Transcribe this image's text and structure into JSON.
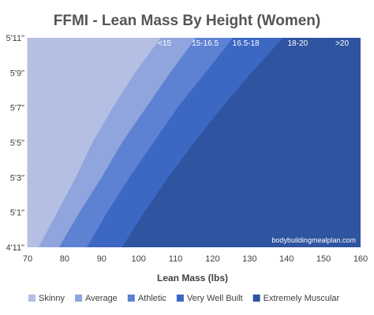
{
  "chart_data": {
    "type": "area",
    "title": "FFMI - Lean Mass By Height (Women)",
    "xlabel": "Lean Mass (lbs)",
    "ylabel": "",
    "xlim": [
      70,
      160
    ],
    "ylim": [
      59,
      71
    ],
    "x_ticks": [
      70,
      80,
      90,
      100,
      110,
      120,
      130,
      140,
      150,
      160
    ],
    "y_ticks": [
      {
        "value": 59,
        "label": "4'11\""
      },
      {
        "value": 61,
        "label": "5'1\""
      },
      {
        "value": 63,
        "label": "5'3\""
      },
      {
        "value": 65,
        "label": "5'5\""
      },
      {
        "value": 67,
        "label": "5'7\""
      },
      {
        "value": 69,
        "label": "5'9\""
      },
      {
        "value": 71,
        "label": "5'11\""
      }
    ],
    "series": [
      {
        "name": "Skinny",
        "color": "#b4bfe3"
      },
      {
        "name": "Average",
        "color": "#90a5dd",
        "lower_boundary": [
          [
            73,
            59
          ],
          [
            78,
            61
          ],
          [
            83,
            63
          ],
          [
            87.5,
            65
          ],
          [
            93,
            67
          ],
          [
            99,
            69
          ],
          [
            106,
            71
          ]
        ]
      },
      {
        "name": "Athletic",
        "color": "#5e82d2",
        "lower_boundary": [
          [
            78.5,
            59
          ],
          [
            84,
            61
          ],
          [
            90,
            63
          ],
          [
            95.5,
            65
          ],
          [
            102,
            67
          ],
          [
            108.5,
            69
          ],
          [
            115.5,
            71
          ]
        ]
      },
      {
        "name": "Very Well Built",
        "color": "#3c68c4",
        "lower_boundary": [
          [
            86,
            59
          ],
          [
            91.5,
            61
          ],
          [
            97.5,
            63
          ],
          [
            104,
            65
          ],
          [
            110.5,
            67
          ],
          [
            118,
            69
          ],
          [
            125.5,
            71
          ]
        ]
      },
      {
        "name": "Extremely Muscular",
        "color": "#2f54a0",
        "lower_boundary": [
          [
            95.5,
            59
          ],
          [
            101.5,
            61
          ],
          [
            108,
            63
          ],
          [
            115,
            65
          ],
          [
            122.5,
            67
          ],
          [
            130.5,
            69
          ],
          [
            139,
            71
          ]
        ]
      }
    ],
    "band_labels": [
      {
        "text": "<15",
        "x": 107,
        "y": 70.55
      },
      {
        "text": "15-16.5",
        "x": 118,
        "y": 70.55
      },
      {
        "text": "16.5-18",
        "x": 129,
        "y": 70.55
      },
      {
        "text": "18-20",
        "x": 143,
        "y": 70.55
      },
      {
        "text": ">20",
        "x": 155,
        "y": 70.55
      }
    ],
    "watermark": "bodybuildingmealplan.com",
    "grid": false,
    "legend_position": "bottom"
  }
}
